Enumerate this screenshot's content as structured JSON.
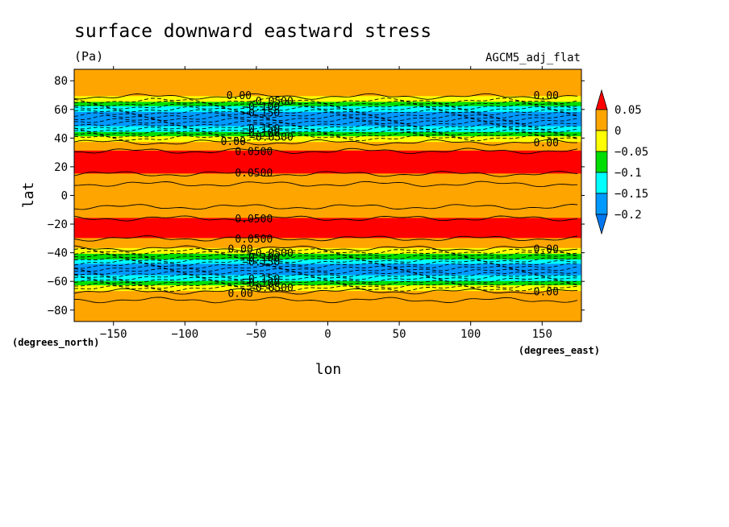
{
  "chart_data": {
    "type": "heatmap",
    "title": "surface downward eastward stress",
    "units": "(Pa)",
    "dataset": "AGCM5_adj_flat",
    "xlabel": "lon",
    "ylabel": "lat",
    "x_units": "(degrees_east)",
    "y_units": "(degrees_north)",
    "xlim": [
      -177.5,
      177.5
    ],
    "ylim": [
      -88,
      88
    ],
    "x_ticks": [
      -150,
      -100,
      -50,
      0,
      50,
      100,
      150
    ],
    "y_ticks": [
      -80,
      -60,
      -40,
      -20,
      0,
      20,
      40,
      60,
      80
    ],
    "x_tick_labels": [
      "−150",
      "−100",
      "−50",
      "0",
      "50",
      "100",
      "150"
    ],
    "y_tick_labels": [
      "−80",
      "−60",
      "−40",
      "−20",
      "0",
      "20",
      "40",
      "60",
      "80"
    ],
    "contour_levels": [
      0.05,
      0,
      -0.05,
      -0.1,
      -0.15,
      -0.2
    ],
    "colorbar_labels": [
      "0.05",
      "0",
      "−0.05",
      "−0.1",
      "−0.15",
      "−0.2"
    ],
    "colorbar_colors": [
      "#ff0000",
      "#ffa500",
      "#ffff00",
      "#00dd00",
      "#00ffff",
      "#0099ff",
      "#0077ee"
    ],
    "bands": [
      {
        "y0": 88,
        "y1": 69,
        "color": "#ffa500"
      },
      {
        "y0": 69,
        "y1": 65,
        "color": "#ffff00"
      },
      {
        "y0": 65,
        "y1": 62,
        "color": "#00dd00"
      },
      {
        "y0": 62,
        "y1": 58,
        "color": "#00ffff"
      },
      {
        "y0": 58,
        "y1": 48,
        "color": "#0099ff"
      },
      {
        "y0": 48,
        "y1": 44,
        "color": "#00ffff"
      },
      {
        "y0": 44,
        "y1": 41,
        "color": "#00dd00"
      },
      {
        "y0": 41,
        "y1": 37,
        "color": "#ffff00"
      },
      {
        "y0": 37,
        "y1": 31,
        "color": "#ffa500"
      },
      {
        "y0": 31,
        "y1": 15,
        "color": "#ff0000"
      },
      {
        "y0": 15,
        "y1": -16,
        "color": "#ffa500"
      },
      {
        "y0": -16,
        "y1": -30,
        "color": "#ff0000"
      },
      {
        "y0": -30,
        "y1": -37,
        "color": "#ffa500"
      },
      {
        "y0": -37,
        "y1": -41,
        "color": "#ffff00"
      },
      {
        "y0": -41,
        "y1": -45,
        "color": "#00dd00"
      },
      {
        "y0": -45,
        "y1": -48,
        "color": "#00ffff"
      },
      {
        "y0": -48,
        "y1": -56,
        "color": "#0099ff"
      },
      {
        "y0": -56,
        "y1": -60,
        "color": "#00ffff"
      },
      {
        "y0": -60,
        "y1": -63,
        "color": "#00dd00"
      },
      {
        "y0": -63,
        "y1": -67,
        "color": "#ffff00"
      },
      {
        "y0": -67,
        "y1": -88,
        "color": "#ffa500"
      }
    ],
    "solid_contours": [
      69,
      37,
      31,
      15,
      8,
      -8,
      -16,
      -30,
      -37,
      -67,
      -73
    ],
    "dashed_contours": [
      66,
      64,
      62,
      60,
      58,
      56,
      54,
      52,
      50,
      48,
      46,
      44,
      42,
      40,
      -39,
      -41,
      -43,
      -45,
      -47,
      -49,
      -51,
      -53,
      -55,
      -57,
      -59,
      -61,
      -63,
      -65
    ],
    "contour_labels": [
      {
        "lon": -71,
        "lat": 70,
        "text": "0.00"
      },
      {
        "lon": -55,
        "lat": 66,
        "text": "−0.0500"
      },
      {
        "lon": -60,
        "lat": 62,
        "text": "−0.100"
      },
      {
        "lon": -60,
        "lat": 58,
        "text": "−0.150"
      },
      {
        "lon": -60,
        "lat": 47,
        "text": "−0.150"
      },
      {
        "lon": -60,
        "lat": 44,
        "text": "−0.100"
      },
      {
        "lon": -55,
        "lat": 41,
        "text": "−0.0500"
      },
      {
        "lon": -75,
        "lat": 38,
        "text": "0.00"
      },
      {
        "lon": -65,
        "lat": 31,
        "text": "0.0500"
      },
      {
        "lon": -65,
        "lat": 16,
        "text": "0.0500"
      },
      {
        "lon": -65,
        "lat": -16,
        "text": "0.0500"
      },
      {
        "lon": -65,
        "lat": -30,
        "text": "0.0500"
      },
      {
        "lon": -70,
        "lat": -37,
        "text": "0.00"
      },
      {
        "lon": -55,
        "lat": -40,
        "text": "−0.0500"
      },
      {
        "lon": -60,
        "lat": -43,
        "text": "−0.100"
      },
      {
        "lon": -60,
        "lat": -46,
        "text": "−0.150"
      },
      {
        "lon": -60,
        "lat": -58,
        "text": "−0.150"
      },
      {
        "lon": -60,
        "lat": -61,
        "text": "−0.100"
      },
      {
        "lon": -55,
        "lat": -64,
        "text": "−0.0500"
      },
      {
        "lon": -70,
        "lat": -68,
        "text": "0.00"
      },
      {
        "lon": 144,
        "lat": 70,
        "text": "0.00"
      },
      {
        "lon": 144,
        "lat": 37,
        "text": "0.00"
      },
      {
        "lon": 144,
        "lat": -37,
        "text": "0.00"
      },
      {
        "lon": 144,
        "lat": -67,
        "text": "0.00"
      }
    ]
  }
}
